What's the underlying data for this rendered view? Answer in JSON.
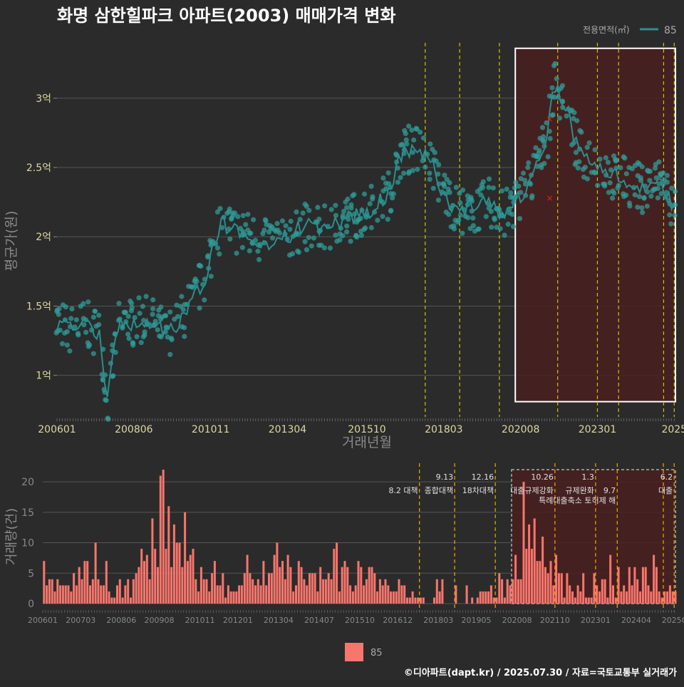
{
  "title": "화명 삼한힐파크 아파트(2003) 매매가격 변화",
  "footer": "©디아파트(dapt.kr) / 2025.07.30 / 자료=국토교통부 실거래가",
  "colors": {
    "background": "#2b2b2b",
    "price_line": "#2a8f8f",
    "price_point": "#2f9e9a",
    "volume_bar": "#f8766d",
    "policy_line": "#d4c000",
    "highlight_fill": "#4a1f1f",
    "highlight_border": "#ffffff",
    "grid": "#555555",
    "axis_text": "#d9d9a0",
    "muted_text": "#888888",
    "annotation_text": "#e0e0e0"
  },
  "legend_top": {
    "title": "전용면적(㎡)",
    "item": "85",
    "placement": "top-right"
  },
  "legend_bottom": {
    "item": "85",
    "placement": "bottom-center"
  },
  "chart_data": [
    {
      "type": "line",
      "title": "화명 삼한힐파크 아파트(2003) 매매가격 변화",
      "xlabel": "거래년월",
      "ylabel": "평균가(원)",
      "xlim": [
        "2006-01",
        "2025-07"
      ],
      "ylim": [
        0.7,
        3.4
      ],
      "y_ticks": [
        1,
        1.5,
        2,
        2.5,
        3
      ],
      "y_tick_labels": [
        "1억",
        "1.5억",
        "2억",
        "2.5억",
        "3억"
      ],
      "x_ticks": [
        "2006-01",
        "2008-06",
        "2010-11",
        "2013-04",
        "2015-10",
        "2018-03",
        "2020-08",
        "2023-01",
        "2025-06"
      ],
      "x_tick_labels": [
        "200601",
        "200806",
        "201011",
        "201304",
        "201510",
        "201803",
        "202008",
        "202301",
        "2025"
      ],
      "grid": true,
      "series": [
        {
          "name": "85",
          "unit": "억",
          "anchors": [
            [
              "2006-01",
              1.38
            ],
            [
              "2006-06",
              1.33
            ],
            [
              "2006-12",
              1.37
            ],
            [
              "2007-05",
              1.3
            ],
            [
              "2007-08",
              0.82
            ],
            [
              "2007-12",
              1.35
            ],
            [
              "2008-06",
              1.38
            ],
            [
              "2008-12",
              1.4
            ],
            [
              "2009-06",
              1.3
            ],
            [
              "2009-10",
              1.35
            ],
            [
              "2010-03",
              1.5
            ],
            [
              "2010-06",
              1.6
            ],
            [
              "2010-09",
              1.7
            ],
            [
              "2010-12",
              1.95
            ],
            [
              "2011-03",
              2.1
            ],
            [
              "2011-08",
              2.05
            ],
            [
              "2012-02",
              2.0
            ],
            [
              "2012-08",
              1.95
            ],
            [
              "2013-04",
              2.0
            ],
            [
              "2013-10",
              2.08
            ],
            [
              "2014-06",
              2.05
            ],
            [
              "2015-01",
              2.12
            ],
            [
              "2015-10",
              2.18
            ],
            [
              "2016-06",
              2.3
            ],
            [
              "2016-11",
              2.6
            ],
            [
              "2017-04",
              2.65
            ],
            [
              "2017-10",
              2.55
            ],
            [
              "2018-03",
              2.3
            ],
            [
              "2018-08",
              2.2
            ],
            [
              "2019-03",
              2.2
            ],
            [
              "2019-08",
              2.25
            ],
            [
              "2020-02",
              2.15
            ],
            [
              "2020-08",
              2.3
            ],
            [
              "2021-01",
              2.45
            ],
            [
              "2021-06",
              2.75
            ],
            [
              "2021-09",
              3.1
            ],
            [
              "2022-01",
              2.95
            ],
            [
              "2022-06",
              2.6
            ],
            [
              "2022-12",
              2.55
            ],
            [
              "2023-06",
              2.45
            ],
            [
              "2023-12",
              2.4
            ],
            [
              "2024-06",
              2.35
            ],
            [
              "2025-01",
              2.4
            ],
            [
              "2025-06",
              2.2
            ]
          ],
          "markers_x": [
            [
              "2021-07",
              2.85
            ],
            [
              "2021-07",
              2.28
            ]
          ]
        }
      ],
      "policy_lines": [
        "2017-08",
        "2018-09",
        "2019-12",
        "2021-10",
        "2023-01",
        "2023-09",
        "2025-02",
        "2025-06"
      ],
      "highlight_range": [
        "2020-06",
        "2025-07"
      ]
    },
    {
      "type": "bar",
      "ylabel": "거래량(건)",
      "xlim": [
        "2006-01",
        "2025-07"
      ],
      "ylim": [
        0,
        22
      ],
      "y_ticks": [
        0,
        5,
        10,
        15,
        20
      ],
      "y_tick_labels": [
        "0",
        "5",
        "10",
        "15",
        "20"
      ],
      "x_ticks": [
        "2006-01",
        "2007-03",
        "2008-06",
        "2009-08",
        "2010-11",
        "2012-01",
        "2013-04",
        "2014-07",
        "2015-10",
        "2016-12",
        "2018-03",
        "2019-05",
        "2020-08",
        "2021-10",
        "2023-01",
        "2024-04",
        "2025-06"
      ],
      "x_tick_labels": [
        "200601",
        "200703",
        "200806",
        "200908",
        "201011",
        "201201",
        "201304",
        "201407",
        "201510",
        "201612",
        "201803",
        "201905",
        "202008",
        "202110",
        "202301",
        "202404",
        "20250"
      ],
      "grid": true,
      "series": [
        {
          "name": "85"
        }
      ],
      "annotations": [
        {
          "date": "2017-08",
          "label": "8.2 대책",
          "tier": 2
        },
        {
          "date": "2018-09",
          "label": "9.13",
          "tier": 1
        },
        {
          "date": "2018-09",
          "label": "종합대책",
          "tier": 2
        },
        {
          "date": "2019-12",
          "label": "12.16",
          "tier": 1
        },
        {
          "date": "2019-12",
          "label": "18차대책",
          "tier": 2
        },
        {
          "date": "2021-10",
          "label": "10.26",
          "tier": 1
        },
        {
          "date": "2021-10",
          "label": "대출규제강화",
          "tier": 2
        },
        {
          "date": "2023-01",
          "label": "1.3",
          "tier": 1
        },
        {
          "date": "2023-01",
          "label": "규제완화",
          "tier": 2
        },
        {
          "date": "2023-09",
          "label": "9.7",
          "tier": 2
        },
        {
          "date": "2023-09",
          "label": "특례대출축소 토허제 해",
          "tier": 3
        },
        {
          "date": "2025-06",
          "label": "6.2",
          "tier": 1
        },
        {
          "date": "2025-06",
          "label": "대출",
          "tier": 2
        }
      ],
      "policy_lines": [
        "2017-08",
        "2018-09",
        "2019-12",
        "2021-10",
        "2023-01",
        "2023-09",
        "2025-02",
        "2025-06"
      ],
      "highlight_range": [
        "2020-06",
        "2025-07"
      ],
      "volume_anchors": [
        [
          "2006-01",
          2
        ],
        [
          "2006-06",
          3
        ],
        [
          "2007-01",
          2
        ],
        [
          "2007-06",
          3
        ],
        [
          "2008-01",
          2
        ],
        [
          "2008-06",
          2
        ],
        [
          "2008-12",
          3
        ],
        [
          "2009-04",
          7
        ],
        [
          "2009-08",
          13
        ],
        [
          "2009-10",
          11
        ],
        [
          "2010-02",
          7
        ],
        [
          "2010-08",
          5
        ],
        [
          "2011-01",
          3
        ],
        [
          "2011-06",
          3
        ],
        [
          "2012-01",
          3
        ],
        [
          "2012-08",
          4
        ],
        [
          "2013-04",
          5
        ],
        [
          "2013-10",
          4
        ],
        [
          "2014-06",
          3
        ],
        [
          "2015-01",
          3
        ],
        [
          "2015-10",
          4
        ],
        [
          "2016-06",
          3
        ],
        [
          "2016-12",
          2
        ],
        [
          "2017-06",
          1
        ],
        [
          "2017-12",
          0
        ],
        [
          "2018-06",
          0
        ],
        [
          "2019-01",
          0
        ],
        [
          "2019-06",
          1
        ],
        [
          "2019-12",
          2
        ],
        [
          "2020-06",
          3
        ],
        [
          "2020-10",
          7
        ],
        [
          "2021-02",
          8
        ],
        [
          "2021-06",
          5
        ],
        [
          "2021-12",
          3
        ],
        [
          "2022-06",
          2
        ],
        [
          "2023-01",
          2
        ],
        [
          "2023-08",
          2
        ],
        [
          "2024-04",
          2
        ],
        [
          "2025-06",
          2
        ]
      ],
      "volume_spikes": [
        [
          "2009-09",
          22
        ],
        [
          "2020-10",
          20
        ]
      ]
    }
  ]
}
